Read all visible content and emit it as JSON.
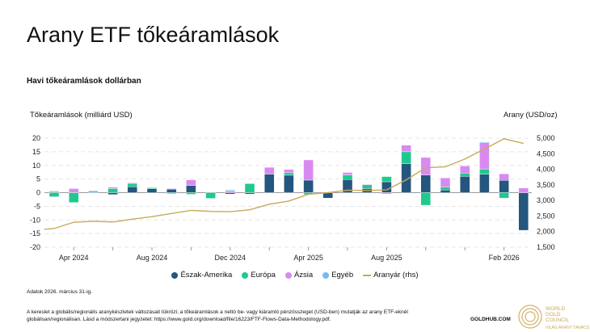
{
  "title": "Arany ETF tőkeáramlások",
  "subtitle": "Havi tőkeáramlások dollárban",
  "note": "Adatok 2026. március 31-ig.",
  "footnote": "A kereslet a globális/regionális aranykészletek változásait tükrözi; a tőkeáramlások a nettó be- vagy kiáramló pénzösszeget (USD-ben) mutatják az arany ETF-eknél globálisan/regionálisan. Lásd a módszertani jegyzetet: https://www.gold.org/download/file/16223/FTF-Flows-Data-Methodology.pdf.",
  "goldhub": "GOLDHUB.COM",
  "logo_text": [
    "WORLD",
    "GOLD",
    "COUNCIL",
    "VILÁG ARANY TANÁCS"
  ],
  "chart_data": {
    "type": "bar",
    "stacked": true,
    "ylabel": "Tőkeáramlások (milliárd USD)",
    "y2label": "Arany (USD/oz)",
    "ylim": [
      -20,
      20
    ],
    "y2lim": [
      1500,
      5000
    ],
    "yticks": [
      "20",
      "15",
      "10",
      "5",
      "0",
      "-5",
      "-10",
      "-15",
      "-20"
    ],
    "y2ticks": [
      "5,000",
      "4,500",
      "4,000",
      "3,500",
      "3,000",
      "2,500",
      "2,000",
      "1,500"
    ],
    "xticks": [
      {
        "label": "Apr 2024",
        "index": 1
      },
      {
        "label": "Aug 2024",
        "index": 5
      },
      {
        "label": "Dec 2024",
        "index": 9
      },
      {
        "label": "Apr 2025",
        "index": 13
      },
      {
        "label": "Aug 2025",
        "index": 17
      },
      {
        "label": "Feb 2026",
        "index": 23
      }
    ],
    "categories": [
      "Mar 2024",
      "Apr 2024",
      "May 2024",
      "Jun 2024",
      "Jul 2024",
      "Aug 2024",
      "Sep 2024",
      "Oct 2024",
      "Nov 2024",
      "Dec 2024",
      "Jan 2025",
      "Feb 2025",
      "Mar 2025",
      "Apr 2025",
      "May 2025",
      "Jun 2025",
      "Jul 2025",
      "Aug 2025",
      "Sep 2025",
      "Oct 2025",
      "Nov 2025",
      "Dec 2025",
      "Jan 2026",
      "Feb 2026",
      "Mar 2026"
    ],
    "series": [
      {
        "name": "Észak-Amerika",
        "color": "#24567e",
        "values": [
          0.3,
          0,
          0,
          -0.7,
          2.2,
          1.4,
          1.3,
          2.6,
          0,
          -0.5,
          -0.5,
          6.8,
          6.4,
          4.6,
          -2.0,
          4.8,
          1.5,
          4.0,
          10.6,
          6.5,
          1.0,
          6.0,
          6.8,
          4.5,
          -13.8
        ]
      },
      {
        "name": "Európa",
        "color": "#1fc98e",
        "values": [
          -1.5,
          -3.6,
          0,
          1.5,
          1.2,
          0.4,
          -0.4,
          -0.6,
          -2.1,
          0,
          3.3,
          0,
          0.9,
          -0.7,
          0,
          1.7,
          1.4,
          1.9,
          4.4,
          -4.6,
          1.1,
          1.2,
          1.9,
          -2.0,
          0
        ]
      },
      {
        "name": "Ázsia",
        "color": "#d98af0",
        "values": [
          0.3,
          1.5,
          0,
          0.5,
          0.2,
          0,
          0.2,
          2.1,
          0,
          0.6,
          0,
          2.5,
          1.2,
          7.4,
          0.2,
          0.9,
          0.2,
          -0.5,
          2.4,
          6.4,
          3.3,
          2.6,
          9.6,
          2.4,
          1.7
        ]
      },
      {
        "name": "Egyéb",
        "color": "#76b9f2",
        "values": [
          0,
          0,
          0.7,
          0,
          0,
          0,
          0,
          0,
          0,
          0.4,
          0,
          0,
          0,
          0,
          0,
          0,
          0,
          0,
          0,
          0,
          0,
          0,
          0.3,
          0,
          0
        ]
      }
    ],
    "line": {
      "name": "Aranyár (rhs)",
      "color": "#c9a95a",
      "values": [
        2100,
        2300,
        2330,
        2310,
        2400,
        2480,
        2580,
        2680,
        2650,
        2640,
        2700,
        2880,
        2980,
        3200,
        3250,
        3330,
        3320,
        3340,
        3660,
        4050,
        4080,
        4330,
        4650,
        4980,
        4830
      ]
    },
    "legend": "bottom"
  }
}
